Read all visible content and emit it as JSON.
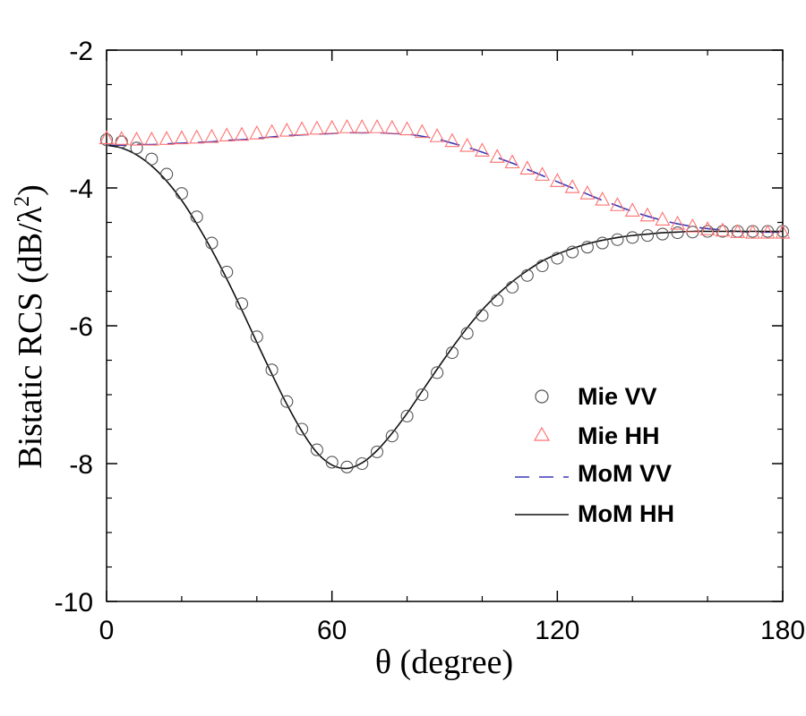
{
  "chart_data": {
    "type": "line",
    "title": "",
    "xlabel": "θ (degree)",
    "ylabel_prefix": "Bistatic RCS (dB/λ",
    "ylabel_superscript": "2",
    "ylabel_suffix": ")",
    "xlim": [
      0,
      180
    ],
    "ylim": [
      -10,
      -2
    ],
    "x_ticks": [
      0,
      60,
      120,
      180
    ],
    "x_tick_labels": [
      "0",
      "60",
      "120",
      "180"
    ],
    "y_ticks": [
      -2,
      -4,
      -6,
      -8,
      -10
    ],
    "y_tick_labels": [
      "-2",
      "-4",
      "-6",
      "-8",
      "-10"
    ],
    "grid": false,
    "legend_position": "center-right",
    "series": [
      {
        "name": "Mie VV",
        "style": "circle-markers",
        "color": "#555555",
        "x": [
          0,
          4,
          8,
          12,
          16,
          20,
          24,
          28,
          32,
          36,
          40,
          44,
          48,
          52,
          56,
          60,
          64,
          68,
          72,
          76,
          80,
          84,
          88,
          92,
          96,
          100,
          104,
          108,
          112,
          116,
          120,
          124,
          128,
          132,
          136,
          140,
          144,
          148,
          152,
          156,
          160,
          164,
          168,
          172,
          176,
          180
        ],
        "values": [
          -3.3,
          -3.33,
          -3.42,
          -3.58,
          -3.8,
          -4.08,
          -4.42,
          -4.8,
          -5.22,
          -5.68,
          -6.16,
          -6.64,
          -7.1,
          -7.5,
          -7.8,
          -7.98,
          -8.05,
          -8.0,
          -7.83,
          -7.6,
          -7.31,
          -7.0,
          -6.68,
          -6.39,
          -6.11,
          -5.85,
          -5.63,
          -5.44,
          -5.27,
          -5.13,
          -5.02,
          -4.93,
          -4.86,
          -4.8,
          -4.75,
          -4.72,
          -4.69,
          -4.67,
          -4.65,
          -4.64,
          -4.63,
          -4.63,
          -4.63,
          -4.63,
          -4.63,
          -4.63
        ]
      },
      {
        "name": "Mie HH",
        "style": "triangle-markers",
        "color": "#ff7070",
        "x": [
          0,
          4,
          8,
          12,
          16,
          20,
          24,
          28,
          32,
          36,
          40,
          44,
          48,
          52,
          56,
          60,
          64,
          68,
          72,
          76,
          80,
          84,
          88,
          92,
          96,
          100,
          104,
          108,
          112,
          116,
          120,
          124,
          128,
          132,
          136,
          140,
          144,
          148,
          152,
          156,
          160,
          164,
          168,
          172,
          176,
          180
        ],
        "values": [
          -3.28,
          -3.29,
          -3.3,
          -3.3,
          -3.29,
          -3.28,
          -3.27,
          -3.26,
          -3.24,
          -3.23,
          -3.21,
          -3.19,
          -3.17,
          -3.15,
          -3.14,
          -3.13,
          -3.12,
          -3.12,
          -3.12,
          -3.13,
          -3.15,
          -3.19,
          -3.25,
          -3.32,
          -3.39,
          -3.46,
          -3.55,
          -3.63,
          -3.72,
          -3.81,
          -3.9,
          -3.99,
          -4.08,
          -4.17,
          -4.25,
          -4.33,
          -4.4,
          -4.46,
          -4.52,
          -4.56,
          -4.6,
          -4.62,
          -4.64,
          -4.65,
          -4.65,
          -4.65
        ]
      },
      {
        "name": "MoM VV",
        "style": "dashed-line",
        "color": "#3a3ab8",
        "x": [
          0,
          4,
          8,
          12,
          16,
          20,
          24,
          28,
          32,
          36,
          40,
          44,
          48,
          52,
          56,
          60,
          64,
          68,
          72,
          76,
          80,
          84,
          88,
          92,
          96,
          100,
          104,
          108,
          112,
          116,
          120,
          124,
          128,
          132,
          136,
          140,
          144,
          148,
          152,
          156,
          160,
          164,
          168,
          172,
          176,
          180
        ],
        "values": [
          -3.38,
          -3.38,
          -3.37,
          -3.37,
          -3.36,
          -3.35,
          -3.34,
          -3.33,
          -3.31,
          -3.3,
          -3.28,
          -3.26,
          -3.24,
          -3.23,
          -3.22,
          -3.21,
          -3.2,
          -3.2,
          -3.2,
          -3.21,
          -3.22,
          -3.25,
          -3.29,
          -3.35,
          -3.41,
          -3.48,
          -3.56,
          -3.64,
          -3.73,
          -3.82,
          -3.91,
          -4.0,
          -4.09,
          -4.18,
          -4.26,
          -4.34,
          -4.41,
          -4.47,
          -4.52,
          -4.56,
          -4.59,
          -4.61,
          -4.63,
          -4.64,
          -4.64,
          -4.64
        ]
      },
      {
        "name": "MoM HH",
        "style": "solid-line",
        "color": "#111111",
        "x": [
          0,
          4,
          8,
          12,
          16,
          20,
          24,
          28,
          32,
          36,
          40,
          44,
          48,
          52,
          56,
          60,
          64,
          68,
          72,
          76,
          80,
          84,
          88,
          92,
          96,
          100,
          104,
          108,
          112,
          116,
          120,
          124,
          128,
          132,
          136,
          140,
          144,
          148,
          152,
          156,
          160,
          164,
          168,
          172,
          176,
          180
        ],
        "values": [
          -3.38,
          -3.42,
          -3.52,
          -3.68,
          -3.9,
          -4.18,
          -4.52,
          -4.9,
          -5.32,
          -5.77,
          -6.24,
          -6.7,
          -7.14,
          -7.53,
          -7.84,
          -8.02,
          -8.07,
          -7.99,
          -7.81,
          -7.56,
          -7.27,
          -6.95,
          -6.63,
          -6.32,
          -6.03,
          -5.77,
          -5.55,
          -5.36,
          -5.2,
          -5.06,
          -4.96,
          -4.88,
          -4.81,
          -4.76,
          -4.72,
          -4.69,
          -4.67,
          -4.65,
          -4.64,
          -4.63,
          -4.63,
          -4.63,
          -4.63,
          -4.63,
          -4.63,
          -4.63
        ]
      }
    ]
  }
}
